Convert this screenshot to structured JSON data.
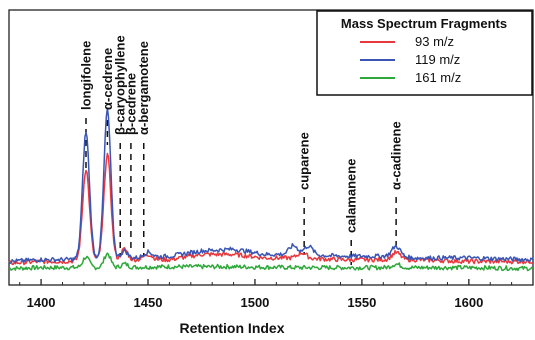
{
  "chart_data": {
    "type": "line",
    "xlabel": "Retention Index",
    "ylabel": "",
    "xlim": [
      1385,
      1630
    ],
    "ylim": [
      0,
      1.0
    ],
    "x_ticks": [
      "1400",
      "1450",
      "1500",
      "1550",
      "1600"
    ],
    "x_tick_values": [
      1400,
      1450,
      1500,
      1550,
      1600
    ],
    "grid": false,
    "legend": {
      "title": "Mass Spectrum Fragments",
      "placement": "top-right",
      "entries": [
        "93 m/z",
        "119 m/z",
        "161 m/z"
      ]
    },
    "series": [
      {
        "name": "93 m/z",
        "color": "#e8383d",
        "baseline": [
          [
            1385,
            0.05
          ],
          [
            1400,
            0.06
          ],
          [
            1410,
            0.06
          ],
          [
            1430,
            0.07
          ],
          [
            1445,
            0.07
          ],
          [
            1460,
            0.07
          ],
          [
            1475,
            0.1
          ],
          [
            1490,
            0.1
          ],
          [
            1505,
            0.08
          ],
          [
            1520,
            0.08
          ],
          [
            1540,
            0.07
          ],
          [
            1560,
            0.07
          ],
          [
            1575,
            0.07
          ],
          [
            1600,
            0.06
          ],
          [
            1630,
            0.06
          ]
        ],
        "peaks": [
          [
            1421,
            0.52,
            1.6
          ],
          [
            1431,
            0.6,
            1.6
          ],
          [
            1439,
            0.06,
            1.5
          ],
          [
            1450,
            0.03,
            2.0
          ],
          [
            1522,
            0.03,
            2.0
          ],
          [
            1566,
            0.04,
            2.0
          ]
        ]
      },
      {
        "name": "119 m/z",
        "color": "#3a55b4",
        "baseline": [
          [
            1385,
            0.06
          ],
          [
            1400,
            0.07
          ],
          [
            1410,
            0.07
          ],
          [
            1430,
            0.08
          ],
          [
            1445,
            0.08
          ],
          [
            1460,
            0.09
          ],
          [
            1475,
            0.12
          ],
          [
            1490,
            0.13
          ],
          [
            1505,
            0.1
          ],
          [
            1520,
            0.1
          ],
          [
            1540,
            0.09
          ],
          [
            1560,
            0.09
          ],
          [
            1575,
            0.08
          ],
          [
            1600,
            0.08
          ],
          [
            1630,
            0.07
          ]
        ],
        "peaks": [
          [
            1421,
            0.72,
            1.6
          ],
          [
            1431,
            0.84,
            1.6
          ],
          [
            1439,
            0.04,
            1.5
          ],
          [
            1450,
            0.03,
            2.0
          ],
          [
            1518,
            0.05,
            2.0
          ],
          [
            1525,
            0.05,
            2.0
          ],
          [
            1566,
            0.06,
            2.0
          ]
        ]
      },
      {
        "name": "161 m/z",
        "color": "#2ea83a",
        "baseline": [
          [
            1385,
            0.02
          ],
          [
            1400,
            0.025
          ],
          [
            1430,
            0.025
          ],
          [
            1460,
            0.03
          ],
          [
            1490,
            0.03
          ],
          [
            1520,
            0.025
          ],
          [
            1560,
            0.025
          ],
          [
            1600,
            0.025
          ],
          [
            1630,
            0.02
          ]
        ],
        "peaks": [
          [
            1421,
            0.06,
            1.5
          ],
          [
            1431,
            0.08,
            1.5
          ],
          [
            1439,
            0.02,
            1.5
          ],
          [
            1566,
            0.02,
            2.0
          ]
        ]
      }
    ],
    "annotations": [
      {
        "label": "longifolene",
        "x": 1421
      },
      {
        "label": "α-cedrene",
        "x": 1431
      },
      {
        "label": "β-caryophyllene",
        "x": 1437
      },
      {
        "label": "β-cedrene",
        "x": 1442
      },
      {
        "label": "α-bergamotene",
        "x": 1448
      },
      {
        "label": "cuparene",
        "x": 1523
      },
      {
        "label": "calamanene",
        "x": 1545
      },
      {
        "label": "α-cadinene",
        "x": 1566
      }
    ]
  }
}
